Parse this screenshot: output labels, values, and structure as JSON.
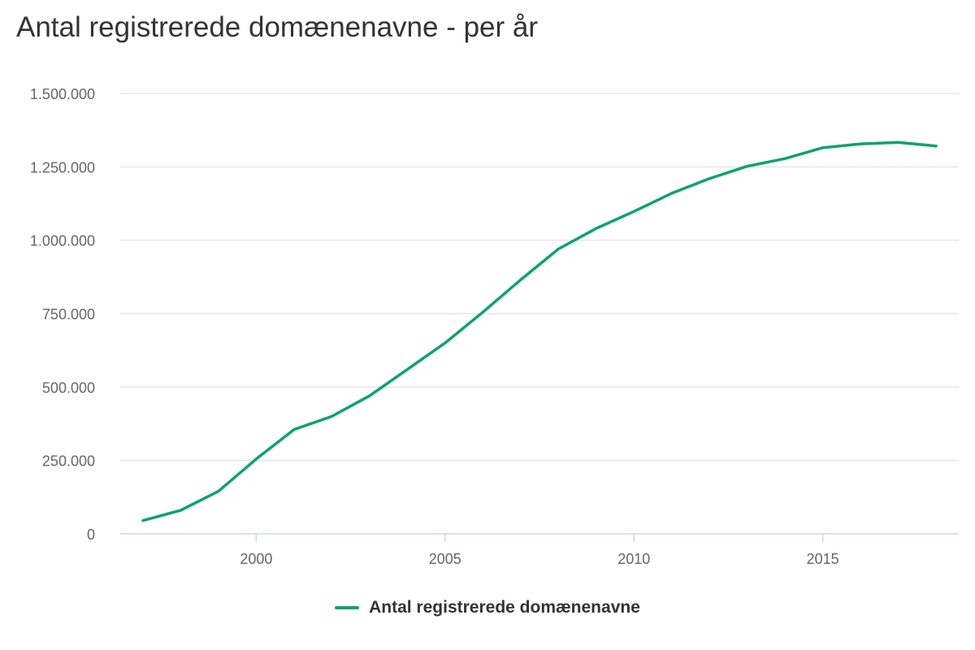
{
  "title": "Antal registrerede domænenavne - per år",
  "chart_data": {
    "type": "line",
    "title": "Antal registrerede domænenavne - per år",
    "xlabel": "",
    "ylabel": "",
    "x": [
      1997,
      1998,
      1999,
      2000,
      2001,
      2002,
      2003,
      2004,
      2005,
      2006,
      2007,
      2008,
      2009,
      2010,
      2011,
      2012,
      2013,
      2014,
      2015,
      2016,
      2017,
      2018
    ],
    "series": [
      {
        "name": "Antal registrerede domænenavne",
        "color": "#0ea271",
        "values": [
          45000,
          80000,
          145000,
          255000,
          355000,
          400000,
          470000,
          560000,
          650000,
          755000,
          865000,
          970000,
          1040000,
          1098000,
          1160000,
          1210000,
          1252000,
          1278000,
          1315000,
          1328000,
          1333000,
          1321000
        ]
      }
    ],
    "xlim": [
      1996.4,
      2018.6
    ],
    "ylim": [
      0,
      1500000
    ],
    "yticks": [
      0,
      250000,
      500000,
      750000,
      1000000,
      1250000,
      1500000
    ],
    "ytick_labels": [
      "0",
      "250.000",
      "500.000",
      "750.000",
      "1.000.000",
      "1.250.000",
      "1.500.000"
    ],
    "xticks": [
      2000,
      2005,
      2010,
      2015
    ],
    "xtick_labels": [
      "2000",
      "2005",
      "2010",
      "2015"
    ],
    "grid": true,
    "legend_position": "bottom-center"
  }
}
